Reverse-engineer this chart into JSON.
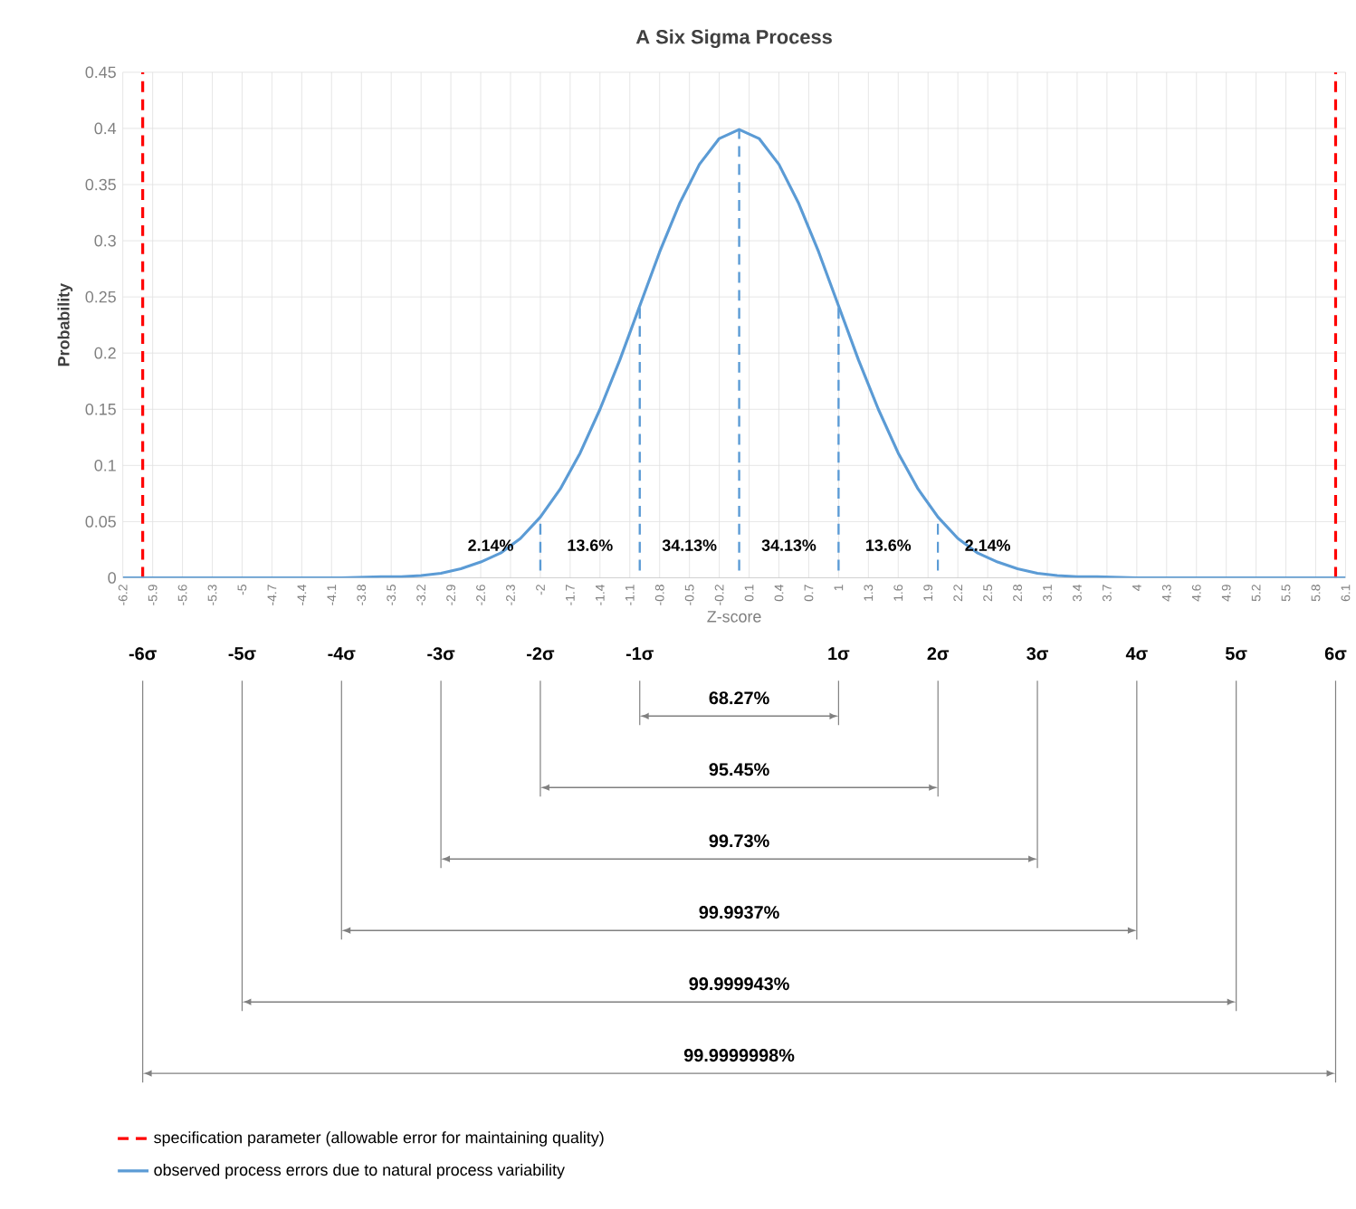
{
  "chart_data": [
    {
      "type": "line",
      "title": "A Six Sigma Process",
      "xlabel": "Z-score",
      "ylabel": "Probability",
      "xlim": [
        -6.2,
        6.1
      ],
      "xticks": [
        -6.2,
        -5.9,
        -5.6,
        -5.3,
        -5,
        -4.7,
        -4.4,
        -4.1,
        -3.8,
        -3.5,
        -3.2,
        -2.9,
        -2.6,
        -2.3,
        -2,
        -1.7,
        -1.4,
        -1.1,
        -0.8,
        -0.5,
        -0.2,
        0.1,
        0.4,
        0.7,
        1,
        1.3,
        1.6,
        1.9,
        2.2,
        2.5,
        2.8,
        3.1,
        3.4,
        3.7,
        4,
        4.3,
        4.6,
        4.9,
        5.2,
        5.5,
        5.8,
        6.1
      ],
      "ylim": [
        0,
        0.45
      ],
      "yticks": [
        0,
        0.05,
        0.1,
        0.15,
        0.2,
        0.25,
        0.3,
        0.35,
        0.4,
        0.45
      ],
      "grid": true,
      "legend": "bottom",
      "series": [
        {
          "name": "specification parameter (allowable error for maintaining quality)",
          "color": "#ff0000",
          "line_style": "dashed",
          "x": [
            -6,
            -6,
            0,
            6,
            6
          ],
          "values": [
            0,
            0.45,
            null,
            0,
            0.45
          ]
        },
        {
          "name": "observed process errors due to natural process variability",
          "color": "#5b9bd5",
          "line_style": "solid",
          "x": [
            -6.2,
            -4,
            -3.6,
            -3.4,
            -3.2,
            -3,
            -2.8,
            -2.6,
            -2.4,
            -2.2,
            -2,
            -1.8,
            -1.6,
            -1.4,
            -1.2,
            -1,
            -0.8,
            -0.6,
            -0.4,
            -0.2,
            0,
            0.2,
            0.4,
            0.6,
            0.8,
            1,
            1.2,
            1.4,
            1.6,
            1.8,
            2,
            2.2,
            2.4,
            2.6,
            2.8,
            3,
            3.2,
            3.4,
            3.6,
            4,
            6.1
          ],
          "values": [
            0,
            0,
            0.001,
            0.001,
            0.002,
            0.004,
            0.008,
            0.014,
            0.022,
            0.035,
            0.054,
            0.079,
            0.111,
            0.15,
            0.194,
            0.242,
            0.29,
            0.333,
            0.368,
            0.391,
            0.399,
            0.391,
            0.368,
            0.333,
            0.29,
            0.242,
            0.194,
            0.15,
            0.111,
            0.079,
            0.054,
            0.035,
            0.022,
            0.014,
            0.008,
            0.004,
            0.002,
            0.001,
            0.001,
            0,
            0
          ]
        },
        {
          "color": "#5b9bd5",
          "line_style": "dashed",
          "x": [
            -2,
            -2,
            -1.5,
            -1,
            -1,
            -0.5,
            0,
            0,
            0.5,
            1,
            1,
            1.5,
            2,
            2
          ],
          "values": [
            0,
            0.054,
            null,
            0,
            0.242,
            null,
            0,
            0.399,
            null,
            0,
            0.242,
            null,
            0,
            0.054
          ]
        }
      ],
      "annotations": [
        "2.14%",
        "13.6%",
        "34.13%",
        "34.13%",
        "13.6%",
        "2.14%"
      ]
    },
    {
      "type": "other",
      "annotations": [
        "-6σ",
        "-5σ",
        "-4σ",
        "-3σ",
        "-2σ",
        "-1σ",
        "1σ",
        "2σ",
        "3σ",
        "4σ",
        "5σ",
        "6σ",
        "68.27%",
        "95.45%",
        "99.73%",
        "99.9937%",
        "99.999943%",
        "99.9999998%"
      ]
    }
  ]
}
